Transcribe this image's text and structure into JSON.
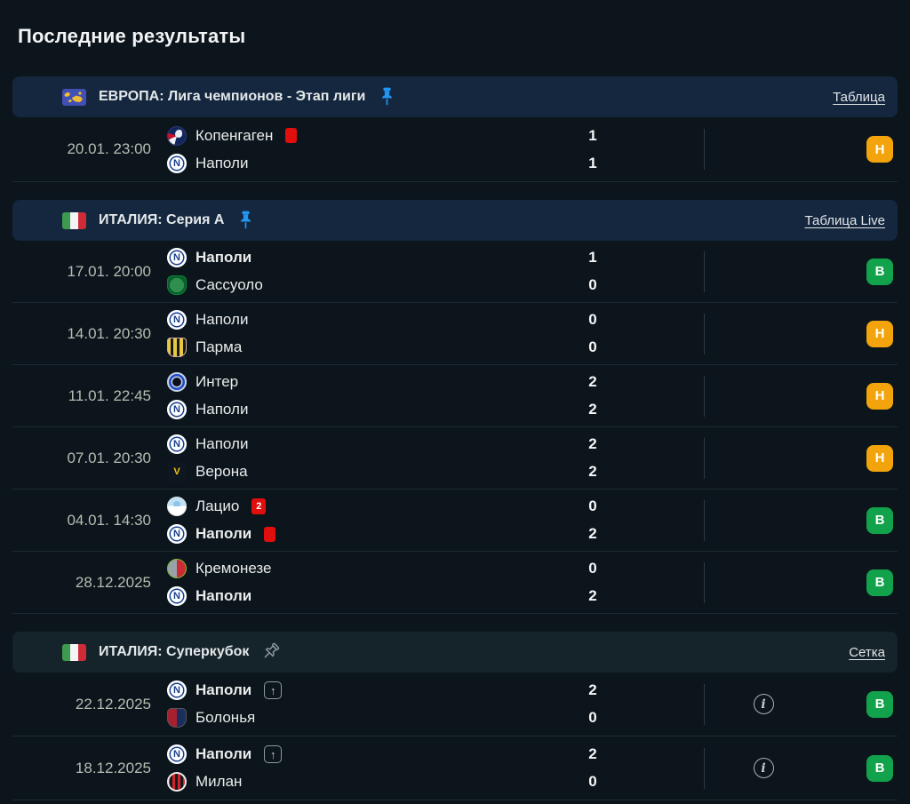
{
  "title": "Последние результаты",
  "colors": {
    "badge_win": "#12a24b",
    "badge_draw": "#f3a40c",
    "red_card": "#e10e0e",
    "pin_active": "#2196f3",
    "header_blue": "#14273e",
    "header_gray": "#15232a"
  },
  "icons": {
    "advance": "↑",
    "info": "i"
  },
  "sections": [
    {
      "title": "ЕВРОПА: Лига чемпионов - Этап лиги",
      "flag": "europe",
      "pinned": true,
      "link": "Таблица",
      "header_bg": "#14273e",
      "matches": [
        {
          "date": "20.01. 23:00",
          "home": {
            "name": "Копенгаген",
            "logo": "kobenhavn",
            "bold": false,
            "red_card": true
          },
          "away": {
            "name": "Наполи",
            "logo": "napoli",
            "bold": false
          },
          "score": {
            "home": "1",
            "away": "1"
          },
          "result": "Н",
          "outcome": "draw",
          "info": false
        }
      ]
    },
    {
      "title": "ИТАЛИЯ: Серия А",
      "flag": "italy",
      "pinned": true,
      "link": "Таблица Live",
      "header_bg": "#14273e",
      "matches": [
        {
          "date": "17.01. 20:00",
          "home": {
            "name": "Наполи",
            "logo": "napoli",
            "bold": true
          },
          "away": {
            "name": "Сассуоло",
            "logo": "sassuolo",
            "bold": false
          },
          "score": {
            "home": "1",
            "away": "0"
          },
          "result": "В",
          "outcome": "win",
          "info": false
        },
        {
          "date": "14.01. 20:30",
          "home": {
            "name": "Наполи",
            "logo": "napoli",
            "bold": false
          },
          "away": {
            "name": "Парма",
            "logo": "parma",
            "bold": false
          },
          "score": {
            "home": "0",
            "away": "0"
          },
          "result": "Н",
          "outcome": "draw",
          "info": false
        },
        {
          "date": "11.01. 22:45",
          "home": {
            "name": "Интер",
            "logo": "inter",
            "bold": false
          },
          "away": {
            "name": "Наполи",
            "logo": "napoli",
            "bold": false
          },
          "score": {
            "home": "2",
            "away": "2"
          },
          "result": "Н",
          "outcome": "draw",
          "info": false
        },
        {
          "date": "07.01. 20:30",
          "home": {
            "name": "Наполи",
            "logo": "napoli",
            "bold": false
          },
          "away": {
            "name": "Верона",
            "logo": "verona",
            "bold": false
          },
          "score": {
            "home": "2",
            "away": "2"
          },
          "result": "Н",
          "outcome": "draw",
          "info": false
        },
        {
          "date": "04.01. 14:30",
          "home": {
            "name": "Лацио",
            "logo": "lazio",
            "bold": false,
            "red_card": true,
            "red_card_count": "2"
          },
          "away": {
            "name": "Наполи",
            "logo": "napoli",
            "bold": true,
            "red_card": true
          },
          "score": {
            "home": "0",
            "away": "2"
          },
          "result": "В",
          "outcome": "win",
          "info": false
        },
        {
          "date": "28.12.2025",
          "home": {
            "name": "Кремонезе",
            "logo": "cremonese",
            "bold": false
          },
          "away": {
            "name": "Наполи",
            "logo": "napoli",
            "bold": true
          },
          "score": {
            "home": "0",
            "away": "2"
          },
          "result": "В",
          "outcome": "win",
          "info": false
        }
      ]
    },
    {
      "title": "ИТАЛИЯ: Суперкубок",
      "flag": "italy",
      "pinned": false,
      "link": "Сетка",
      "header_bg": "#15232a",
      "matches": [
        {
          "date": "22.12.2025",
          "home": {
            "name": "Наполи",
            "logo": "napoli",
            "bold": true,
            "advance": true
          },
          "away": {
            "name": "Болонья",
            "logo": "bologna",
            "bold": false
          },
          "score": {
            "home": "2",
            "away": "0"
          },
          "result": "В",
          "outcome": "win",
          "info": true
        },
        {
          "date": "18.12.2025",
          "home": {
            "name": "Наполи",
            "logo": "napoli",
            "bold": true,
            "advance": true
          },
          "away": {
            "name": "Милан",
            "logo": "milan",
            "bold": false
          },
          "score": {
            "home": "2",
            "away": "0"
          },
          "result": "В",
          "outcome": "win",
          "info": true
        }
      ]
    }
  ]
}
